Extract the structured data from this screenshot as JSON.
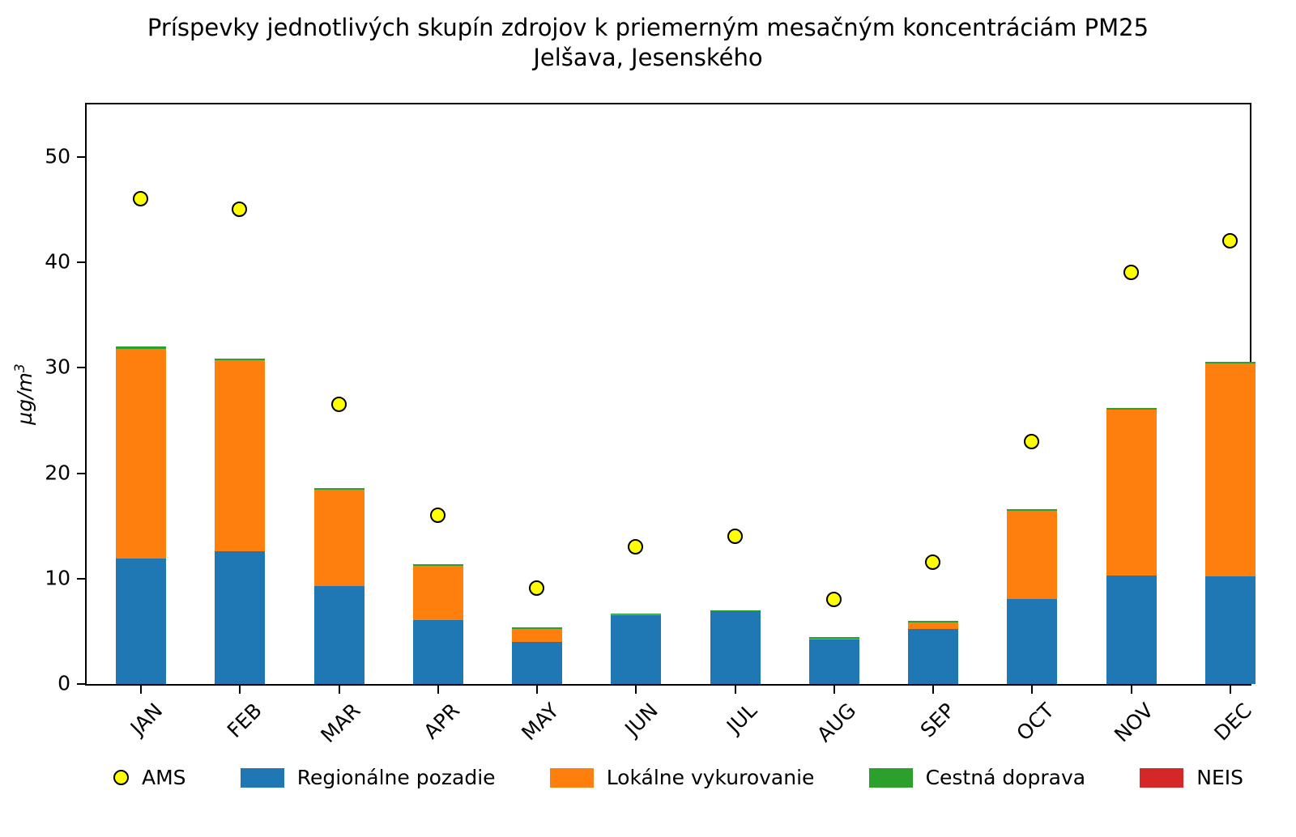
{
  "title": {
    "line1": "Príspevky jednotlivých skupín zdrojov k priemerným mesačným koncentráciám PM25",
    "line2": "Jelšava, Jesenského"
  },
  "y_axis": {
    "label_base": "µg/m",
    "label_sup": "3",
    "ticks": [
      0,
      10,
      20,
      30,
      40,
      50
    ]
  },
  "chart_data": {
    "type": "bar",
    "subtype": "stacked-bars-with-point-overlay",
    "categories": [
      "JAN",
      "FEB",
      "MAR",
      "APR",
      "MAY",
      "JUN",
      "JUL",
      "AUG",
      "SEP",
      "OCT",
      "NOV",
      "DEC"
    ],
    "series": [
      {
        "name": "Regionálne pozadie",
        "color": "#1f77b4",
        "values": [
          11.9,
          12.6,
          9.3,
          6.1,
          4.0,
          6.55,
          6.9,
          4.25,
          5.2,
          8.1,
          10.3,
          10.2
        ]
      },
      {
        "name": "Lokálne vykurovanie",
        "color": "#ff7f0e",
        "values": [
          19.9,
          18.1,
          9.1,
          5.1,
          1.25,
          0.05,
          0.0,
          0.05,
          0.65,
          8.35,
          15.75,
          20.25
        ]
      },
      {
        "name": "Cestná doprava",
        "color": "#2ca02c",
        "values": [
          0.2,
          0.2,
          0.2,
          0.15,
          0.15,
          0.1,
          0.1,
          0.15,
          0.15,
          0.15,
          0.15,
          0.15
        ]
      },
      {
        "name": "NEIS",
        "color": "#d62728",
        "values": [
          0,
          0,
          0,
          0,
          0,
          0,
          0,
          0,
          0,
          0,
          0,
          0
        ]
      }
    ],
    "bar_totals": [
      32.0,
      30.9,
      18.6,
      11.35,
      5.4,
      6.7,
      7.0,
      4.45,
      6.0,
      16.6,
      26.2,
      30.6
    ],
    "points": {
      "name": "AMS",
      "color": "#ffff00",
      "values": [
        46,
        45,
        26.5,
        16,
        9.1,
        13,
        14,
        8,
        11.5,
        23,
        39,
        42
      ]
    },
    "title": "Príspevky jednotlivých skupín zdrojov k priemerným mesačným koncentráciám PM25 — Jelšava, Jesenského",
    "xlabel": "",
    "ylabel": "µg/m³",
    "ylim": [
      0,
      55
    ],
    "grid": false,
    "legend_position": "bottom"
  },
  "legend": {
    "items": [
      {
        "label": "AMS",
        "color": "#ffff00",
        "marker": "circle"
      },
      {
        "label": "Regionálne pozadie",
        "color": "#1f77b4",
        "marker": "rect"
      },
      {
        "label": "Lokálne vykurovanie",
        "color": "#ff7f0e",
        "marker": "rect"
      },
      {
        "label": "Cestná doprava",
        "color": "#2ca02c",
        "marker": "rect"
      },
      {
        "label": "NEIS",
        "color": "#d62728",
        "marker": "rect"
      }
    ]
  }
}
